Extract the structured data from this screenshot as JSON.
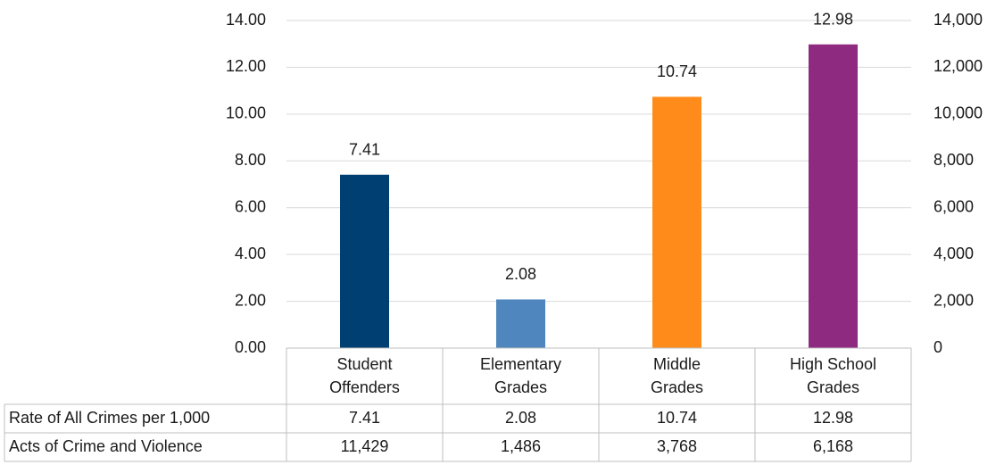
{
  "chart_data": {
    "type": "bar",
    "categories": [
      [
        "Student",
        "Offenders"
      ],
      [
        "Elementary",
        "Grades"
      ],
      [
        "Middle",
        "Grades"
      ],
      [
        "High School",
        "Grades"
      ]
    ],
    "series": [
      {
        "name": "Rate of All Crimes per 1,000",
        "values": [
          7.41,
          2.08,
          10.74,
          12.98
        ],
        "labels": [
          "7.41",
          "2.08",
          "10.74",
          "12.98"
        ],
        "axis": "left",
        "drawn_as": "bars"
      },
      {
        "name": "Acts of Crime and Violence",
        "values": [
          11429,
          1486,
          3768,
          6168
        ],
        "labels": [
          "11,429",
          "1,486",
          "3,768",
          "6,168"
        ],
        "axis": "right",
        "drawn_as": "table-only"
      }
    ],
    "bar_colors": [
      "#003f72",
      "#4e86bd",
      "#ff8c1a",
      "#8e2a7f"
    ],
    "data_labels": [
      "7.41",
      "2.08",
      "10.74",
      "12.98"
    ],
    "y_left": {
      "ylim": [
        0,
        14
      ],
      "ticks": [
        "0.00",
        "2.00",
        "4.00",
        "6.00",
        "8.00",
        "10.00",
        "12.00",
        "14.00"
      ]
    },
    "y_right": {
      "ylim": [
        0,
        14000
      ],
      "ticks": [
        "0",
        "2,000",
        "4,000",
        "6,000",
        "8,000",
        "10,000",
        "12,000",
        "14,000"
      ]
    },
    "grid": true,
    "legend": "data-table",
    "title": "",
    "xlabel": "",
    "ylabel": ""
  }
}
